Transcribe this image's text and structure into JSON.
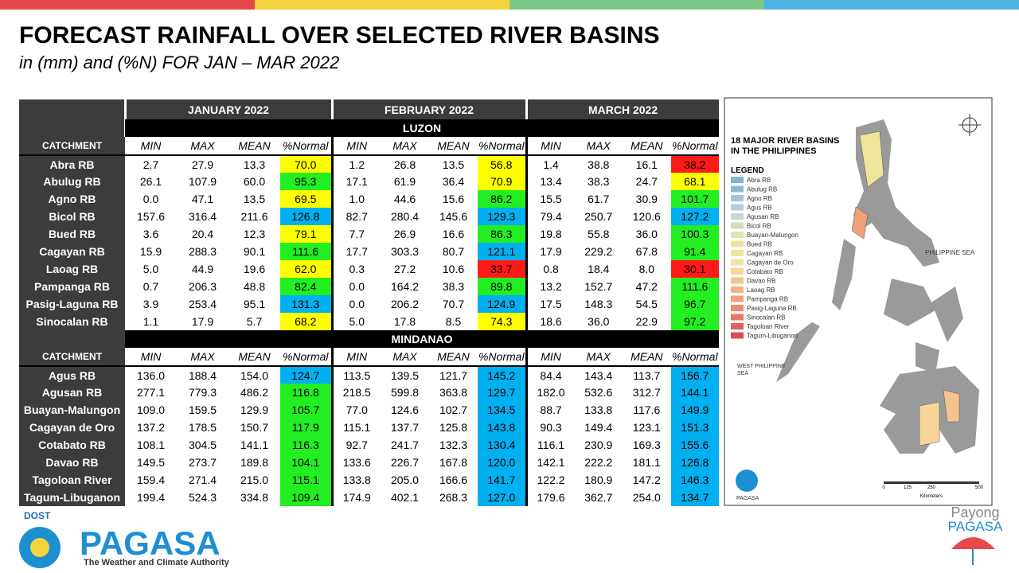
{
  "header": {
    "title": "FORECAST RAINFALL OVER SELECTED RIVER BASINS",
    "subtitle": "in (mm) and (%N) FOR JAN – MAR 2022"
  },
  "table": {
    "months": [
      "JANUARY 2022",
      "FEBRUARY 2022",
      "MARCH 2022"
    ],
    "catchment_label": "CATCHMENT",
    "columns": [
      "MIN",
      "MAX",
      "MEAN",
      "%Normal"
    ],
    "sections": [
      {
        "region": "LUZON",
        "rows": [
          {
            "name": "Abra RB",
            "cells": [
              "2.7",
              "27.9",
              "13.3",
              "70.0",
              "1.2",
              "26.8",
              "13.5",
              "56.8",
              "1.4",
              "38.8",
              "16.1",
              "38.2"
            ],
            "colors": [
              "#ffff00",
              "#ffff00",
              "#ff1a1a"
            ]
          },
          {
            "name": "Abulug RB",
            "cells": [
              "26.1",
              "107.9",
              "60.0",
              "95.3",
              "17.1",
              "61.9",
              "36.4",
              "70.9",
              "13.4",
              "38.3",
              "24.7",
              "68.1"
            ],
            "colors": [
              "#22ee22",
              "#ffff00",
              "#ffff00"
            ]
          },
          {
            "name": "Agno RB",
            "cells": [
              "0.0",
              "47.1",
              "13.5",
              "69.5",
              "1.0",
              "44.6",
              "15.6",
              "86.2",
              "15.5",
              "61.7",
              "30.9",
              "101.7"
            ],
            "colors": [
              "#ffff00",
              "#22ee22",
              "#22ee22"
            ]
          },
          {
            "name": "Bicol RB",
            "cells": [
              "157.6",
              "316.4",
              "211.6",
              "126.8",
              "82.7",
              "280.4",
              "145.6",
              "129.3",
              "79.4",
              "250.7",
              "120.6",
              "127.2"
            ],
            "colors": [
              "#00b0f0",
              "#00b0f0",
              "#00b0f0"
            ]
          },
          {
            "name": "Bued RB",
            "cells": [
              "3.6",
              "20.4",
              "12.3",
              "79.1",
              "7.7",
              "26.9",
              "16.6",
              "86.3",
              "19.8",
              "55.8",
              "36.0",
              "100.3"
            ],
            "colors": [
              "#ffff00",
              "#22ee22",
              "#22ee22"
            ]
          },
          {
            "name": "Cagayan RB",
            "cells": [
              "15.9",
              "288.3",
              "90.1",
              "111.6",
              "17.7",
              "303.3",
              "80.7",
              "121.1",
              "17.9",
              "229.2",
              "67.8",
              "91.4"
            ],
            "colors": [
              "#22ee22",
              "#00b0f0",
              "#22ee22"
            ]
          },
          {
            "name": "Laoag RB",
            "cells": [
              "5.0",
              "44.9",
              "19.6",
              "62.0",
              "0.3",
              "27.2",
              "10.6",
              "33.7",
              "0.8",
              "18.4",
              "8.0",
              "30.1"
            ],
            "colors": [
              "#ffff00",
              "#ff1a1a",
              "#ff1a1a"
            ]
          },
          {
            "name": "Pampanga RB",
            "cells": [
              "0.7",
              "206.3",
              "48.8",
              "82.4",
              "0.0",
              "164.2",
              "38.3",
              "89.8",
              "13.2",
              "152.7",
              "47.2",
              "111.6"
            ],
            "colors": [
              "#22ee22",
              "#22ee22",
              "#22ee22"
            ]
          },
          {
            "name": "Pasig-Laguna RB",
            "cells": [
              "3.9",
              "253.4",
              "95.1",
              "131.3",
              "0.0",
              "206.2",
              "70.7",
              "124.9",
              "17.5",
              "148.3",
              "54.5",
              "96.7"
            ],
            "colors": [
              "#00b0f0",
              "#00b0f0",
              "#22ee22"
            ]
          },
          {
            "name": "Sinocalan RB",
            "cells": [
              "1.1",
              "17.9",
              "5.7",
              "68.2",
              "5.0",
              "17.8",
              "8.5",
              "74.3",
              "18.6",
              "36.0",
              "22.9",
              "97.2"
            ],
            "colors": [
              "#ffff00",
              "#ffff00",
              "#22ee22"
            ]
          }
        ]
      },
      {
        "region": "MINDANAO",
        "rows": [
          {
            "name": "Agus RB",
            "cells": [
              "136.0",
              "188.4",
              "154.0",
              "124.7",
              "113.5",
              "139.5",
              "121.7",
              "145.2",
              "84.4",
              "143.4",
              "113.7",
              "156.7"
            ],
            "colors": [
              "#00b0f0",
              "#00b0f0",
              "#00b0f0"
            ]
          },
          {
            "name": "Agusan RB",
            "cells": [
              "277.1",
              "779.3",
              "486.2",
              "116.8",
              "218.5",
              "599.8",
              "363.8",
              "129.7",
              "182.0",
              "532.6",
              "312.7",
              "144.1"
            ],
            "colors": [
              "#22ee22",
              "#00b0f0",
              "#00b0f0"
            ]
          },
          {
            "name": "Buayan-Malungon",
            "cells": [
              "109.0",
              "159.5",
              "129.9",
              "105.7",
              "77.0",
              "124.6",
              "102.7",
              "134.5",
              "88.7",
              "133.8",
              "117.6",
              "149.9"
            ],
            "colors": [
              "#22ee22",
              "#00b0f0",
              "#00b0f0"
            ]
          },
          {
            "name": "Cagayan de Oro",
            "cells": [
              "137.2",
              "178.5",
              "150.7",
              "117.9",
              "115.1",
              "137.7",
              "125.8",
              "143.8",
              "90.3",
              "149.4",
              "123.1",
              "151.3"
            ],
            "colors": [
              "#22ee22",
              "#00b0f0",
              "#00b0f0"
            ]
          },
          {
            "name": "Cotabato RB",
            "cells": [
              "108.1",
              "304.5",
              "141.1",
              "116.3",
              "92.7",
              "241.7",
              "132.3",
              "130.4",
              "116.1",
              "230.9",
              "169.3",
              "155.6"
            ],
            "colors": [
              "#22ee22",
              "#00b0f0",
              "#00b0f0"
            ]
          },
          {
            "name": "Davao RB",
            "cells": [
              "149.5",
              "273.7",
              "189.8",
              "104.1",
              "133.6",
              "226.7",
              "167.8",
              "120.0",
              "142.1",
              "222.2",
              "181.1",
              "126.8"
            ],
            "colors": [
              "#22ee22",
              "#00b0f0",
              "#00b0f0"
            ]
          },
          {
            "name": "Tagoloan River",
            "cells": [
              "159.4",
              "271.4",
              "215.0",
              "115.1",
              "133.8",
              "205.0",
              "166.6",
              "141.7",
              "122.2",
              "180.9",
              "147.2",
              "146.3"
            ],
            "colors": [
              "#22ee22",
              "#00b0f0",
              "#00b0f0"
            ]
          },
          {
            "name": "Tagum-Libuganon",
            "cells": [
              "199.4",
              "524.3",
              "334.8",
              "109.4",
              "174.9",
              "402.1",
              "268.3",
              "127.0",
              "179.6",
              "362.7",
              "254.0",
              "134.7"
            ],
            "colors": [
              "#22ee22",
              "#00b0f0",
              "#00b0f0"
            ]
          }
        ]
      }
    ]
  },
  "map": {
    "title": [
      "18 MAJOR RIVER BASINS",
      "IN THE PHILIPPINES"
    ],
    "legend_title": "LEGEND",
    "legend": [
      {
        "name": "Abra RB",
        "color": "#7fb5d5"
      },
      {
        "name": "Abulug RB",
        "color": "#8fb8cf"
      },
      {
        "name": "Agno RB",
        "color": "#a2c4d8"
      },
      {
        "name": "Agus RB",
        "color": "#b5cfd9"
      },
      {
        "name": "Agusan RB",
        "color": "#c4d7d0"
      },
      {
        "name": "Bicol RB",
        "color": "#d1dcc0"
      },
      {
        "name": "Buayan-Malungon",
        "color": "#dfe3b0"
      },
      {
        "name": "Bued RB",
        "color": "#e8e6a0"
      },
      {
        "name": "Cagayan RB",
        "color": "#efe59a"
      },
      {
        "name": "Cagayan de Oro",
        "color": "#f4e0a0"
      },
      {
        "name": "Cotabato RB",
        "color": "#f6d49a"
      },
      {
        "name": "Davao RB",
        "color": "#f5c48e"
      },
      {
        "name": "Laoag RB",
        "color": "#f3b384"
      },
      {
        "name": "Pampanga RB",
        "color": "#f0a07a"
      },
      {
        "name": "Pasig-Laguna RB",
        "color": "#ec8c70"
      },
      {
        "name": "Sinocalan RB",
        "color": "#e77866"
      },
      {
        "name": "Tagoloan River",
        "color": "#e0625c"
      },
      {
        "name": "Tagum-Libuganon",
        "color": "#d84e54"
      }
    ],
    "sea_east": "PHILIPPINE SEA",
    "sea_west": [
      "WEST PHILIPPINE",
      "SEA"
    ],
    "logo": "PAGASA",
    "scale": [
      "0",
      "125",
      "250",
      "500"
    ],
    "scale_unit": "Kilometers"
  },
  "footer": {
    "dost": "DOST",
    "brand": "PAGASA",
    "tagline": "The Weather and Climate Authority",
    "payong": [
      "Payong",
      "PAGASA"
    ]
  }
}
